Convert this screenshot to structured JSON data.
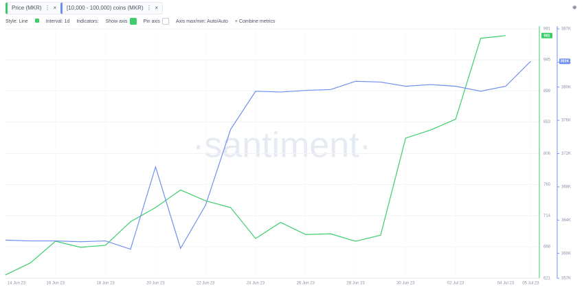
{
  "tabs": [
    "Price (MKR)",
    "[10,000 - 100,000) coins (MKR)"
  ],
  "toolbar": {
    "style": "Style: Line",
    "interval": "Interval: 1d",
    "indicators": "Indicators:",
    "show_axis": "Show axis",
    "pin_axis": "Pin axis",
    "axis_range": "Axis max/min: Auto/Auto",
    "combine": "+ Combine metrics"
  },
  "watermark": "·santiment·",
  "chart_data": {
    "type": "line",
    "categories": [
      "14 Jun 23",
      null,
      "16 Jun 23",
      null,
      "18 Jun 23",
      null,
      "20 Jun 23",
      null,
      "22 Jun 23",
      null,
      "24 Jun 23",
      null,
      "26 Jun 23",
      null,
      "28 Jun 23",
      null,
      "30 Jun 23",
      null,
      "02 Jul 23",
      null,
      "04 Jul 23",
      "05 Jul 23"
    ],
    "series": [
      {
        "name": "Price (MKR)",
        "color": "#3ccd6a",
        "values": [
          626,
          644,
          676,
          667,
          670,
          705,
          726,
          752,
          736,
          726,
          680,
          704,
          686,
          687,
          676,
          685,
          829,
          841,
          857,
          977,
          981,
          null
        ],
        "value_labels": [
          null,
          null,
          null,
          null,
          null,
          null,
          null,
          null,
          null,
          null,
          null,
          null,
          null,
          null,
          null,
          null,
          null,
          null,
          null,
          null,
          "981",
          null
        ]
      },
      {
        "name": "[10,000 - 100,000) coins (MKR)",
        "color": "#6f8ff0",
        "axis": "y2",
        "values": [
          361600,
          361500,
          361500,
          361400,
          361500,
          360500,
          370400,
          360600,
          365800,
          374900,
          379500,
          379400,
          379600,
          379700,
          380700,
          380600,
          380100,
          380300,
          380100,
          379500,
          380100,
          383100
        ],
        "value_labels": [
          null,
          null,
          null,
          null,
          null,
          null,
          null,
          null,
          null,
          null,
          null,
          null,
          null,
          null,
          null,
          null,
          null,
          null,
          null,
          null,
          null,
          "383K"
        ]
      }
    ],
    "ylim": [
      621,
      991
    ],
    "yticks": [
      621,
      668,
      714,
      760,
      806,
      853,
      899,
      945,
      991
    ],
    "y2lim": [
      357000,
      387000
    ],
    "y2ticks": [
      {
        "value": 357000,
        "label": "357K"
      },
      {
        "value": 360000,
        "label": "360K"
      },
      {
        "value": 364000,
        "label": "364K"
      },
      {
        "value": 368000,
        "label": "368K"
      },
      {
        "value": 372000,
        "label": "372K"
      },
      {
        "value": 376000,
        "label": "376K"
      },
      {
        "value": 380000,
        "label": "380K"
      },
      {
        "value": 383000,
        "label": "383K"
      },
      {
        "value": 387000,
        "label": "387K"
      }
    ],
    "grid": true
  }
}
